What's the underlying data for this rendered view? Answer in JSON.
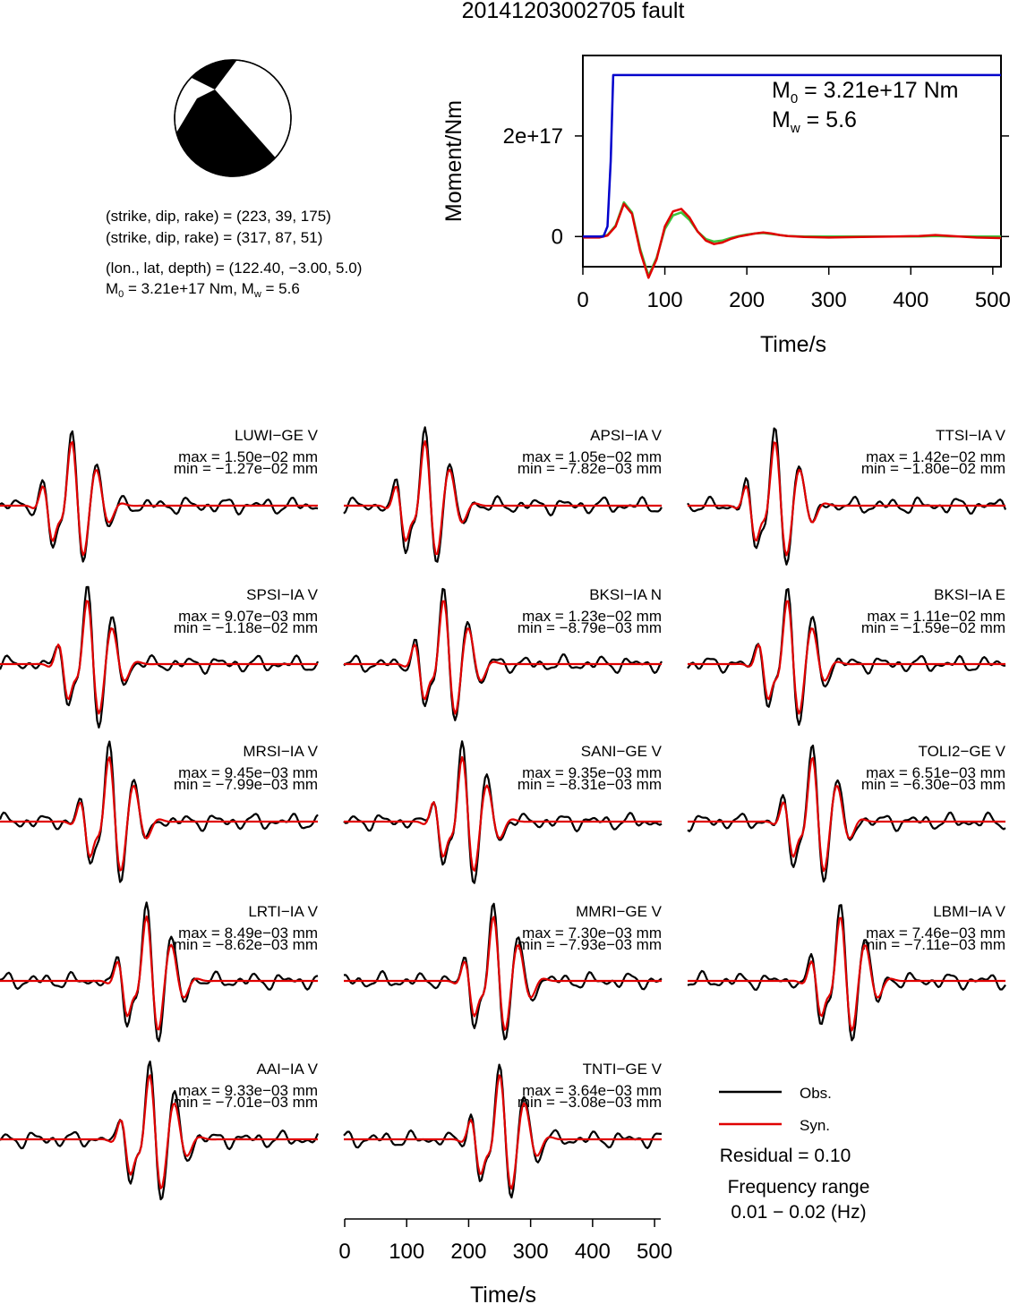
{
  "title": "20141203002705 fault",
  "mechanism": {
    "line1": "(strike, dip, rake) = (223, 39, 175)",
    "line2": "(strike, dip, rake) = (317, 87, 51)",
    "line3": "(lon., lat, depth) = (122.40, −3.00, 5.0)",
    "line4_pre": "M",
    "line4_sub": "0",
    "line4_mid": " = 3.21e+17 Nm, M",
    "line4_sub2": "w",
    "line4_post": " = 5.6"
  },
  "colors": {
    "obs": "#000000",
    "syn": "#e00000",
    "moment": "#0000cc",
    "stf": "#3cc43c"
  },
  "chart_data": [
    {
      "type": "line",
      "ylabel": "Moment/Nm",
      "xlabel": "Time/s",
      "xlim": [
        0,
        510
      ],
      "ylim": [
        -6e+16,
        3.6e+17
      ],
      "x_ticks": [
        0,
        100,
        200,
        300,
        400,
        500
      ],
      "y_ticks": [
        {
          "value": 0,
          "label": "0"
        },
        {
          "value": 2e+17,
          "label": "2e+17"
        }
      ],
      "annotation_m0_pre": "M",
      "annotation_m0_sub": "0",
      "annotation_m0_post": " = 3.21e+17 Nm",
      "annotation_mw_pre": "M",
      "annotation_mw_sub": "w",
      "annotation_mw_post": " = 5.6",
      "series": [
        {
          "color": "blue",
          "x": [
            0,
            25,
            30,
            34,
            37,
            510
          ],
          "y": [
            0,
            0,
            2e+16,
            1.5e+17,
            3.21e+17,
            3.21e+17
          ]
        },
        {
          "color": "red",
          "x": [
            0,
            20,
            30,
            40,
            50,
            60,
            70,
            80,
            90,
            100,
            110,
            120,
            130,
            140,
            150,
            160,
            170,
            180,
            190,
            200,
            210,
            220,
            230,
            240,
            250,
            270,
            300,
            340,
            380,
            410,
            430,
            450,
            480,
            510
          ],
          "y": [
            -2000000000000000.0,
            -2000000000000000.0,
            2000000000000000.0,
            2e+16,
            6.5e+16,
            4.5e+16,
            -3e+16,
            -8.2e+16,
            -4.5e+16,
            2e+16,
            5e+16,
            5.5e+16,
            3.8e+16,
            1e+16,
            -8000000000000000.0,
            -1.5e+16,
            -1.2e+16,
            -5000000000000000.0,
            0.0,
            3000000000000000.0,
            6000000000000000.0,
            8000000000000000.0,
            6000000000000000.0,
            3000000000000000.0,
            1000000000000000.0,
            -1000000000000000.0,
            -2000000000000000.0,
            -1000000000000000.0,
            0.0,
            1000000000000000.0,
            3000000000000000.0,
            1000000000000000.0,
            -2000000000000000.0,
            -3000000000000000.0
          ]
        },
        {
          "color": "green",
          "x": [
            0,
            20,
            30,
            40,
            50,
            60,
            70,
            80,
            90,
            100,
            110,
            120,
            130,
            140,
            150,
            160,
            170,
            180,
            190,
            200,
            210,
            220,
            230,
            240,
            250,
            270,
            300,
            340,
            380,
            410,
            430,
            450,
            480,
            510
          ],
          "y": [
            0.0,
            0.0,
            3000000000000000.0,
            2.2e+16,
            6.8e+16,
            4.8e+16,
            -2.5e+16,
            -7.8e+16,
            -4.2e+16,
            1.5e+16,
            4.2e+16,
            4.8e+16,
            3.3e+16,
            1e+16,
            -5000000000000000.0,
            -1e+16,
            -8000000000000000.0,
            -3000000000000000.0,
            1000000000000000.0,
            4000000000000000.0,
            6000000000000000.0,
            7000000000000000.0,
            5000000000000000.0,
            3000000000000000.0,
            1000000000000000.0,
            0.0,
            0.0,
            0.0,
            0.0,
            0.0,
            1000000000000000.0,
            0.0,
            0.0,
            0.0
          ]
        }
      ]
    },
    {
      "type": "line",
      "xlabel": "Time/s",
      "xlim": [
        0,
        510
      ],
      "x_ticks": [
        0,
        100,
        200,
        300,
        400,
        500
      ],
      "stations": [
        {
          "name": "LUWI−GE V",
          "max": "max = 1.50e−02 mm",
          "min": "min = −1.27e−02 mm",
          "seed": 11,
          "center": 115,
          "amp": 1.0
        },
        {
          "name": "APSI−IA V",
          "max": "max = 1.05e−02 mm",
          "min": "min = −7.82e−03 mm",
          "seed": 23,
          "center": 130,
          "amp": 1.0
        },
        {
          "name": "TTSI−IA V",
          "max": "max = 1.42e−02 mm",
          "min": "min = −1.80e−02 mm",
          "seed": 31,
          "center": 140,
          "amp": 1.0
        },
        {
          "name": "SPSI−IA V",
          "max": "max = 9.07e−03 mm",
          "min": "min = −1.18e−02 mm",
          "seed": 47,
          "center": 140,
          "amp": 1.0
        },
        {
          "name": "BKSI−IA N",
          "max": "max = 1.23e−02 mm",
          "min": "min = −8.79e−03 mm",
          "seed": 53,
          "center": 160,
          "amp": 1.0
        },
        {
          "name": "BKSI−IA E",
          "max": "max = 1.11e−02 mm",
          "min": "min = −1.59e−02 mm",
          "seed": 61,
          "center": 160,
          "amp": 1.0
        },
        {
          "name": "MRSI−IA V",
          "max": "max = 9.45e−03 mm",
          "min": "min = −7.99e−03 mm",
          "seed": 71,
          "center": 175,
          "amp": 1.0
        },
        {
          "name": "SANI−GE V",
          "max": "max = 9.35e−03 mm",
          "min": "min = −8.31e−03 mm",
          "seed": 83,
          "center": 190,
          "amp": 1.0
        },
        {
          "name": "TOLI2−GE V",
          "max": "max = 6.51e−03 mm",
          "min": "min = −6.30e−03 mm",
          "seed": 97,
          "center": 200,
          "amp": 1.0
        },
        {
          "name": "LRTI−IA V",
          "max": "max = 8.49e−03 mm",
          "min": "min = −8.62e−03 mm",
          "seed": 101,
          "center": 235,
          "amp": 1.0
        },
        {
          "name": "MMRI−GE V",
          "max": "max = 7.30e−03 mm",
          "min": "min = −7.93e−03 mm",
          "seed": 113,
          "center": 240,
          "amp": 1.0
        },
        {
          "name": "LBMI−IA V",
          "max": "max = 7.46e−03 mm",
          "min": "min = −7.11e−03 mm",
          "seed": 127,
          "center": 245,
          "amp": 1.0
        },
        {
          "name": "AAI−IA V",
          "max": "max = 9.33e−03 mm",
          "min": "min = −7.01e−03 mm",
          "seed": 131,
          "center": 240,
          "amp": 1.0
        },
        {
          "name": "TNTI−GE V",
          "max": "max = 3.64e−03 mm",
          "min": "min = −3.08e−03 mm",
          "seed": 149,
          "center": 250,
          "amp": 1.0
        }
      ]
    }
  ],
  "legend": {
    "obs_label": "Obs.",
    "syn_label": "Syn.",
    "residual": "Residual = 0.10",
    "freq_label": "Frequency range",
    "freq_value": "0.01 − 0.02 (Hz)"
  }
}
